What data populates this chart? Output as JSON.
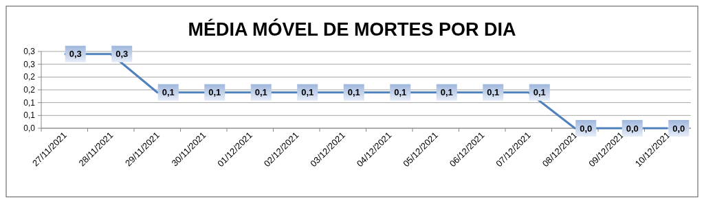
{
  "chart_data": {
    "type": "line",
    "title": "MÉDIA MÓVEL DE MORTES POR DIA",
    "categories": [
      "27/11/2021",
      "28/11/2021",
      "29/11/2021",
      "30/11/2021",
      "01/12/2021",
      "02/12/2021",
      "03/12/2021",
      "04/12/2021",
      "05/12/2021",
      "06/12/2021",
      "07/12/2021",
      "08/12/2021",
      "09/12/2021",
      "10/12/2021"
    ],
    "series": [
      {
        "color": "#4f81bd",
        "values": [
          0.29,
          0.29,
          0.14,
          0.14,
          0.14,
          0.14,
          0.14,
          0.14,
          0.14,
          0.14,
          0.14,
          0,
          0,
          0
        ],
        "value_labels": [
          "0,3",
          "0,3",
          "0,1",
          "0,1",
          "0,1",
          "0,1",
          "0,1",
          "0,1",
          "0,1",
          "0,1",
          "0,1",
          "0,0",
          "0,0",
          "0,0"
        ]
      }
    ],
    "ylim": [
      0,
      0.3
    ],
    "yticks": [
      {
        "value": 0,
        "label": "0,0"
      },
      {
        "value": 0.05,
        "label": "0,1"
      },
      {
        "value": 0.1,
        "label": "0,1"
      },
      {
        "value": 0.15,
        "label": "0,2"
      },
      {
        "value": 0.2,
        "label": "0,2"
      },
      {
        "value": 0.25,
        "label": "0,3"
      },
      {
        "value": 0.3,
        "label": "0,3"
      }
    ],
    "grid": "y"
  }
}
